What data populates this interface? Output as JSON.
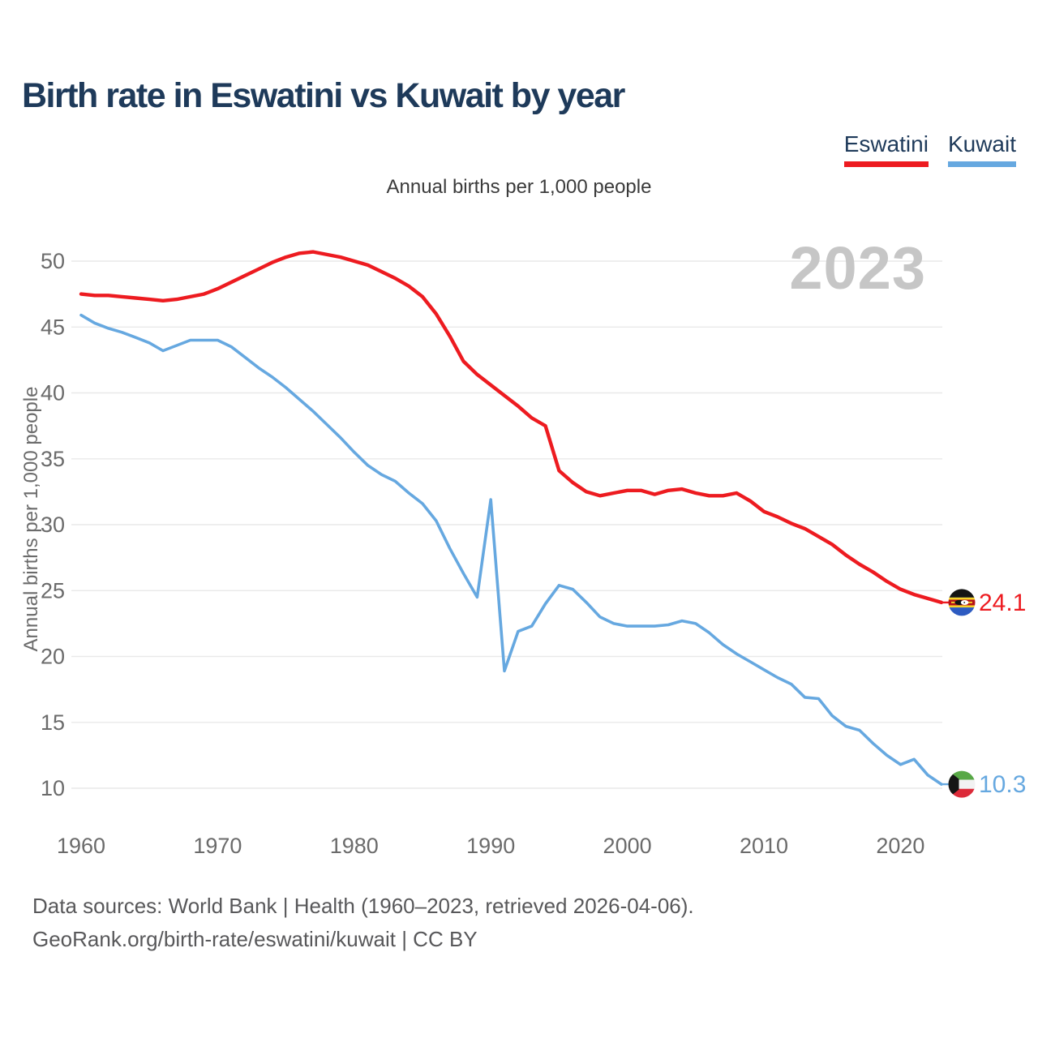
{
  "header": {
    "title": "Birth rate in Eswatini vs Kuwait by year"
  },
  "legend": {
    "items": [
      {
        "label": "Eswatini",
        "color": "#ed1b20"
      },
      {
        "label": "Kuwait",
        "color": "#66a8e0"
      }
    ]
  },
  "chart_data": {
    "type": "line",
    "title": "Birth rate in Eswatini vs Kuwait by year",
    "subtitle": "Annual births per 1,000 people",
    "ylabel": "Annual births per 1,000 people",
    "watermark": "2023",
    "grid": "horizontal",
    "legend_position": "top-right",
    "xlim": [
      1960,
      2023
    ],
    "ylim": [
      10,
      50
    ],
    "x_ticks": [
      1960,
      1970,
      1980,
      1990,
      2000,
      2010,
      2020
    ],
    "y_ticks": [
      10,
      15,
      20,
      25,
      30,
      35,
      40,
      45,
      50
    ],
    "x": [
      1960,
      1961,
      1962,
      1963,
      1964,
      1965,
      1966,
      1967,
      1968,
      1969,
      1970,
      1971,
      1972,
      1973,
      1974,
      1975,
      1976,
      1977,
      1978,
      1979,
      1980,
      1981,
      1982,
      1983,
      1984,
      1985,
      1986,
      1987,
      1988,
      1989,
      1990,
      1991,
      1992,
      1993,
      1994,
      1995,
      1996,
      1997,
      1998,
      1999,
      2000,
      2001,
      2002,
      2003,
      2004,
      2005,
      2006,
      2007,
      2008,
      2009,
      2010,
      2011,
      2012,
      2013,
      2014,
      2015,
      2016,
      2017,
      2018,
      2019,
      2020,
      2021,
      2022,
      2023
    ],
    "series": [
      {
        "name": "Eswatini",
        "color": "#ed1b20",
        "flag": "eswatini",
        "end_label": "24.1",
        "values": [
          47.5,
          47.4,
          47.4,
          47.3,
          47.2,
          47.1,
          47.0,
          47.1,
          47.3,
          47.5,
          47.9,
          48.4,
          48.9,
          49.4,
          49.9,
          50.3,
          50.6,
          50.7,
          50.5,
          50.3,
          50.0,
          49.7,
          49.2,
          48.7,
          48.1,
          47.3,
          46.0,
          44.3,
          42.4,
          41.4,
          40.6,
          39.8,
          39.0,
          38.1,
          37.5,
          34.1,
          33.2,
          32.5,
          32.2,
          32.4,
          32.6,
          32.6,
          32.3,
          32.6,
          32.7,
          32.4,
          32.2,
          32.2,
          32.4,
          31.8,
          31.0,
          30.6,
          30.1,
          29.7,
          29.1,
          28.5,
          27.7,
          27.0,
          26.4,
          25.7,
          25.1,
          24.7,
          24.4,
          24.1
        ]
      },
      {
        "name": "Kuwait",
        "color": "#66a8e0",
        "flag": "kuwait",
        "end_label": "10.3",
        "values": [
          45.9,
          45.3,
          44.9,
          44.6,
          44.2,
          43.8,
          43.2,
          43.6,
          44.0,
          44.0,
          44.0,
          43.5,
          42.7,
          41.9,
          41.2,
          40.4,
          39.5,
          38.6,
          37.6,
          36.6,
          35.5,
          34.5,
          33.8,
          33.3,
          32.4,
          31.6,
          30.3,
          28.2,
          26.3,
          24.5,
          31.9,
          18.9,
          21.9,
          22.3,
          24.0,
          25.4,
          25.1,
          24.1,
          23.0,
          22.5,
          22.3,
          22.3,
          22.3,
          22.4,
          22.7,
          22.5,
          21.8,
          20.9,
          20.2,
          19.6,
          19.0,
          18.4,
          17.9,
          16.9,
          16.8,
          15.5,
          14.7,
          14.4,
          13.4,
          12.5,
          11.8,
          12.2,
          11.0,
          10.3
        ]
      }
    ],
    "colors": {
      "grid": "#e9e9e9",
      "tick_text": "#6b6b6b",
      "watermark": "#c6c6c6",
      "title_text": "#1e3a5a"
    }
  },
  "footer": {
    "line1": "Data sources: World Bank | Health (1960–2023, retrieved 2026-04-06).",
    "line2": "GeoRank.org/birth-rate/eswatini/kuwait | CC BY"
  }
}
